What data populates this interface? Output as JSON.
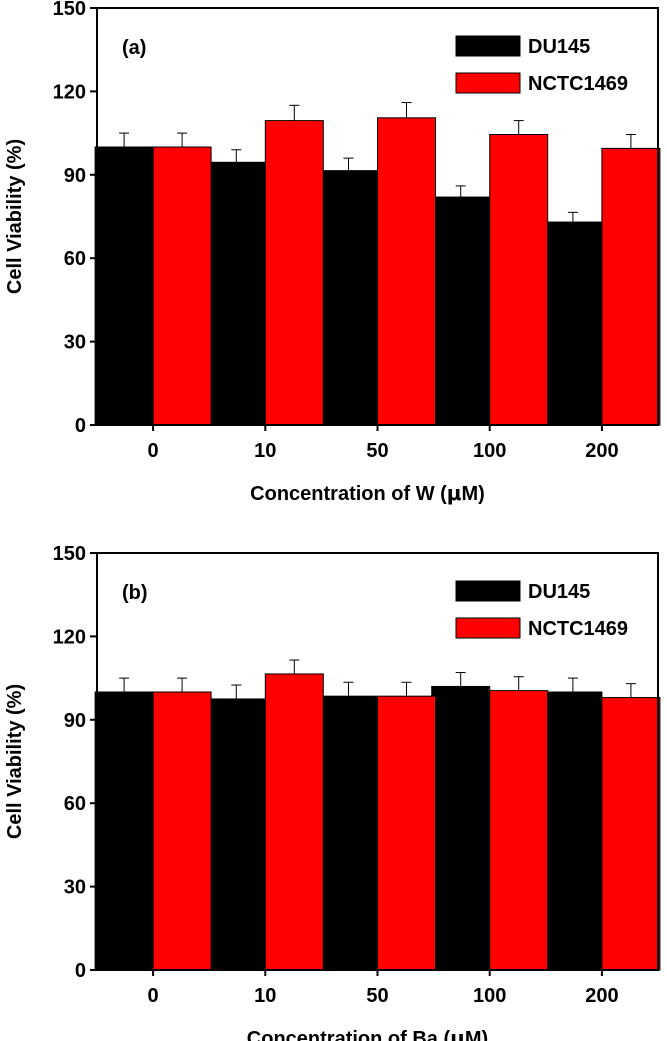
{
  "chart_data": [
    {
      "type": "bar",
      "panel_label": "(a)",
      "categories": [
        "0",
        "10",
        "50",
        "100",
        "200"
      ],
      "series": [
        {
          "name": "DU145",
          "color": "#000000",
          "values": [
            100,
            94.5,
            91.5,
            82,
            73
          ],
          "errors": [
            5,
            4.5,
            4.5,
            4,
            3.5
          ]
        },
        {
          "name": "NCTC1469",
          "color": "#ff0000",
          "values": [
            100,
            109.5,
            110.5,
            104.5,
            99.5
          ],
          "errors": [
            5,
            5.5,
            5.5,
            5,
            5
          ]
        }
      ],
      "xlabel_prefix": "Concentration of W (",
      "xlabel_unit_mu": "μ",
      "xlabel_suffix": "M)",
      "ylabel": "Cell Viability (%)",
      "ylim": [
        0,
        150
      ],
      "yticks": [
        "0",
        "30",
        "60",
        "90",
        "120",
        "150"
      ],
      "grid": false,
      "legend_position": "top-right"
    },
    {
      "type": "bar",
      "panel_label": "(b)",
      "categories": [
        "0",
        "10",
        "50",
        "100",
        "200"
      ],
      "series": [
        {
          "name": "DU145",
          "color": "#000000",
          "values": [
            100,
            97.5,
            98.5,
            102,
            100
          ],
          "errors": [
            5,
            5,
            5,
            5,
            5
          ]
        },
        {
          "name": "NCTC1469",
          "color": "#ff0000",
          "values": [
            100,
            106.5,
            98.5,
            100.5,
            98
          ],
          "errors": [
            5,
            5,
            5,
            5,
            5
          ]
        }
      ],
      "xlabel_prefix": "Concentration of Ba (",
      "xlabel_unit_mu": "μ",
      "xlabel_suffix": "M)",
      "ylabel": "Cell Viability (%)",
      "ylim": [
        0,
        150
      ],
      "yticks": [
        "0",
        "30",
        "60",
        "90",
        "120",
        "150"
      ],
      "grid": false,
      "legend_position": "top-right"
    }
  ]
}
